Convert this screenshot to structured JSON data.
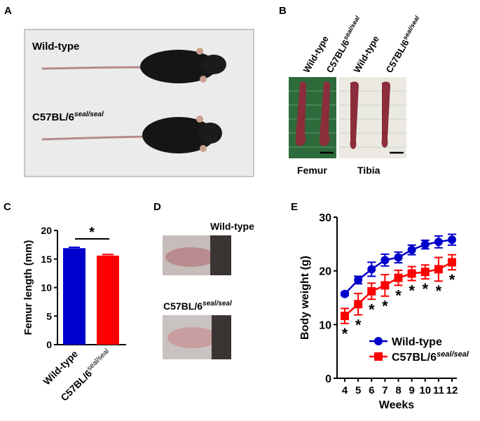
{
  "panels": {
    "a": {
      "letter": "A",
      "label_wt": "Wild-type",
      "label_mut": "C57BL/6",
      "label_mut_sup": "seal/seal"
    },
    "b": {
      "letter": "B",
      "label_wt": "Wild-type",
      "label_mut": "C57BL/6",
      "label_mut_sup": "seal/seal",
      "bone1": "Femur",
      "bone2": "Tibia"
    },
    "c": {
      "letter": "C"
    },
    "d": {
      "letter": "D",
      "label_wt": "Wild-type",
      "label_mut": "C57BL/6",
      "label_mut_sup": "seal/seal"
    },
    "e": {
      "letter": "E"
    }
  },
  "colors": {
    "wild_type": "#0000cc",
    "mutant": "#ff0000"
  },
  "chart_data": [
    {
      "panel": "C",
      "type": "bar",
      "ylabel": "Femur length (mm)",
      "categories": [
        "Wild-type",
        "C57BL/6seal/seal"
      ],
      "category_main": [
        "Wild-type",
        "C57BL/6"
      ],
      "category_sup": [
        "",
        "seal/seal"
      ],
      "values": [
        16.9,
        15.6
      ],
      "errors": [
        0.15,
        0.2
      ],
      "ylim": [
        0,
        20
      ],
      "yticks": [
        0,
        5,
        10,
        15,
        20
      ],
      "significance": "*"
    },
    {
      "panel": "E",
      "type": "line",
      "xlabel": "Weeks",
      "ylabel": "Body weight (g)",
      "x": [
        4,
        5,
        6,
        7,
        8,
        9,
        10,
        11,
        12
      ],
      "ylim": [
        0,
        30
      ],
      "yticks": [
        0,
        10,
        20,
        30
      ],
      "legend": "bottom-right",
      "significance_marker": "*",
      "series": [
        {
          "name": "Wild-type",
          "marker": "circle",
          "values": [
            15.7,
            18.3,
            20.3,
            22.0,
            22.5,
            23.9,
            24.9,
            25.4,
            25.8
          ],
          "errors": [
            0.3,
            0.7,
            1.3,
            1.1,
            1.0,
            0.9,
            0.8,
            1.1,
            1.0
          ]
        },
        {
          "name": "C57BL/6seal/seal",
          "name_main": "C57BL/6",
          "name_sup": "seal/seal",
          "marker": "square",
          "values": [
            11.6,
            13.8,
            16.2,
            17.3,
            18.7,
            19.5,
            19.8,
            20.3,
            21.6
          ],
          "errors": [
            1.4,
            2.0,
            1.5,
            2.0,
            1.4,
            1.3,
            1.3,
            2.2,
            1.4
          ]
        }
      ]
    }
  ]
}
